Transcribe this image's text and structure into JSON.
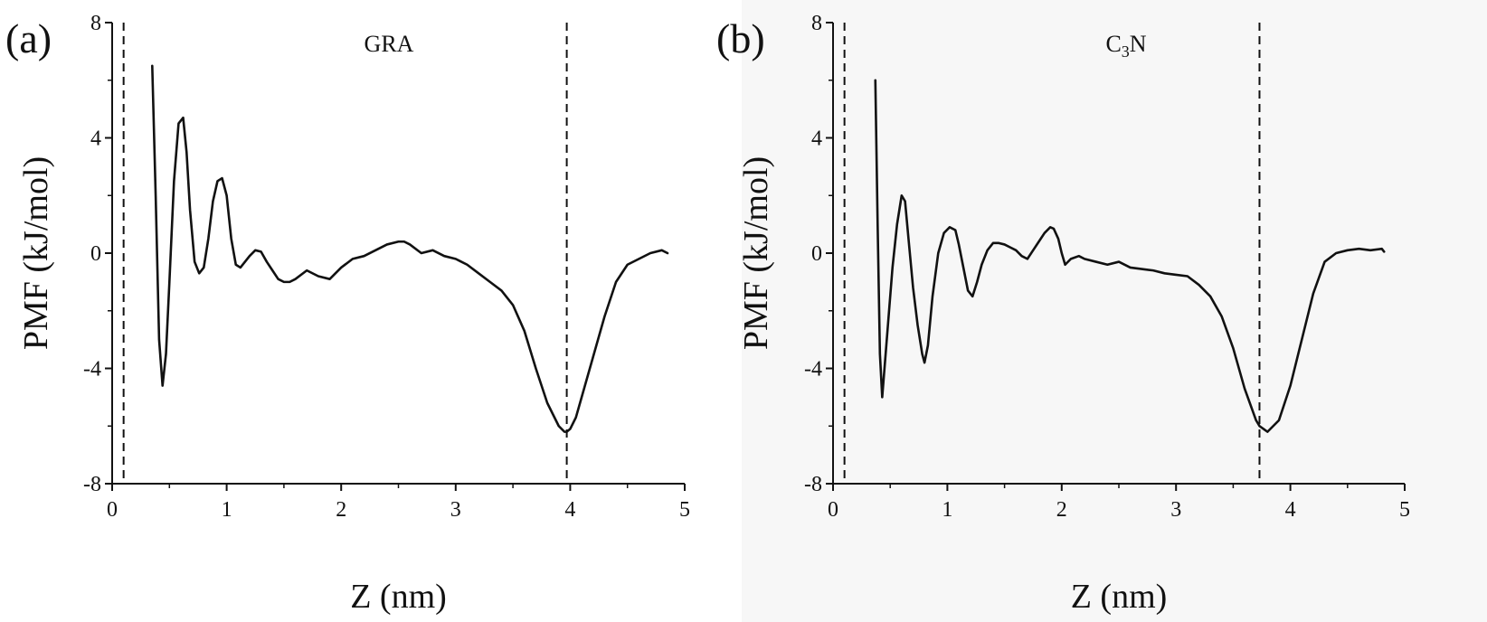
{
  "chart_data": [
    {
      "type": "line",
      "panel_label": "(a)",
      "annotation": "GRA",
      "xlabel": "Z (nm)",
      "ylabel": "PMF (kJ/mol)",
      "xlim": [
        0,
        5
      ],
      "ylim": [
        -8,
        8
      ],
      "xticks": [
        "0",
        "1",
        "2",
        "3",
        "4",
        "5"
      ],
      "yticks": [
        "-8",
        "-4",
        "0",
        "4",
        "8"
      ],
      "reference_lines_x": [
        0.1,
        3.97
      ],
      "line_color": "#111111",
      "series": [
        {
          "x": [
            0.35,
            0.38,
            0.41,
            0.44,
            0.47,
            0.5,
            0.54,
            0.58,
            0.62,
            0.65,
            0.68,
            0.72,
            0.76,
            0.8,
            0.84,
            0.88,
            0.92,
            0.96,
            1.0,
            1.04,
            1.08,
            1.12,
            1.16,
            1.2,
            1.25,
            1.3,
            1.35,
            1.4,
            1.45,
            1.5,
            1.55,
            1.6,
            1.7,
            1.8,
            1.9,
            2.0,
            2.1,
            2.2,
            2.3,
            2.4,
            2.5,
            2.55,
            2.6,
            2.7,
            2.8,
            2.9,
            3.0,
            3.1,
            3.2,
            3.3,
            3.4,
            3.5,
            3.6,
            3.7,
            3.8,
            3.9,
            3.95,
            3.97,
            4.0,
            4.05,
            4.1,
            4.2,
            4.3,
            4.4,
            4.5,
            4.6,
            4.7,
            4.8,
            4.85
          ],
          "y": [
            6.5,
            2.0,
            -3.0,
            -4.6,
            -3.5,
            -1.0,
            2.5,
            4.5,
            4.7,
            3.5,
            1.5,
            -0.3,
            -0.7,
            -0.5,
            0.5,
            1.8,
            2.5,
            2.6,
            2.0,
            0.5,
            -0.4,
            -0.5,
            -0.3,
            -0.1,
            0.1,
            0.05,
            -0.3,
            -0.6,
            -0.9,
            -1.0,
            -1.0,
            -0.9,
            -0.6,
            -0.8,
            -0.9,
            -0.5,
            -0.2,
            -0.1,
            0.1,
            0.3,
            0.4,
            0.4,
            0.3,
            0.0,
            0.1,
            -0.1,
            -0.2,
            -0.4,
            -0.7,
            -1.0,
            -1.3,
            -1.8,
            -2.7,
            -4.0,
            -5.2,
            -6.0,
            -6.2,
            -6.2,
            -6.1,
            -5.7,
            -5.0,
            -3.6,
            -2.2,
            -1.0,
            -0.4,
            -0.2,
            0.0,
            0.1,
            0.0
          ]
        }
      ]
    },
    {
      "type": "line",
      "panel_label": "(b)",
      "annotation_main": "C",
      "annotation_sub": "3",
      "annotation_tail": "N",
      "xlabel": "Z (nm)",
      "ylabel": "PMF (kJ/mol)",
      "xlim": [
        0,
        5
      ],
      "ylim": [
        -8,
        8
      ],
      "xticks": [
        "0",
        "1",
        "2",
        "3",
        "4",
        "5"
      ],
      "yticks": [
        "-8",
        "-4",
        "0",
        "4",
        "8"
      ],
      "reference_lines_x": [
        0.1,
        3.73
      ],
      "line_color": "#111111",
      "series": [
        {
          "x": [
            0.37,
            0.39,
            0.41,
            0.43,
            0.45,
            0.48,
            0.52,
            0.56,
            0.6,
            0.63,
            0.66,
            0.7,
            0.74,
            0.78,
            0.8,
            0.83,
            0.87,
            0.92,
            0.97,
            1.02,
            1.07,
            1.1,
            1.14,
            1.18,
            1.22,
            1.26,
            1.3,
            1.35,
            1.4,
            1.45,
            1.5,
            1.55,
            1.6,
            1.65,
            1.7,
            1.75,
            1.8,
            1.85,
            1.9,
            1.93,
            1.97,
            2.0,
            2.03,
            2.08,
            2.15,
            2.2,
            2.3,
            2.4,
            2.5,
            2.6,
            2.7,
            2.8,
            2.9,
            3.0,
            3.1,
            3.2,
            3.3,
            3.4,
            3.5,
            3.6,
            3.7,
            3.73,
            3.8,
            3.9,
            4.0,
            4.1,
            4.2,
            4.3,
            4.4,
            4.5,
            4.6,
            4.7,
            4.8,
            4.82
          ],
          "y": [
            6.0,
            1.0,
            -3.5,
            -5.0,
            -4.0,
            -2.5,
            -0.5,
            1.0,
            2.0,
            1.8,
            0.5,
            -1.2,
            -2.5,
            -3.5,
            -3.8,
            -3.2,
            -1.5,
            0.0,
            0.7,
            0.9,
            0.8,
            0.3,
            -0.5,
            -1.3,
            -1.5,
            -1.0,
            -0.4,
            0.1,
            0.35,
            0.35,
            0.3,
            0.2,
            0.1,
            -0.1,
            -0.2,
            0.1,
            0.4,
            0.7,
            0.9,
            0.85,
            0.5,
            0.0,
            -0.4,
            -0.2,
            -0.1,
            -0.2,
            -0.3,
            -0.4,
            -0.3,
            -0.5,
            -0.55,
            -0.6,
            -0.7,
            -0.75,
            -0.8,
            -1.1,
            -1.5,
            -2.2,
            -3.3,
            -4.7,
            -5.8,
            -6.0,
            -6.2,
            -5.8,
            -4.6,
            -3.0,
            -1.4,
            -0.3,
            0.0,
            0.1,
            0.15,
            0.1,
            0.15,
            0.05
          ]
        }
      ]
    }
  ]
}
